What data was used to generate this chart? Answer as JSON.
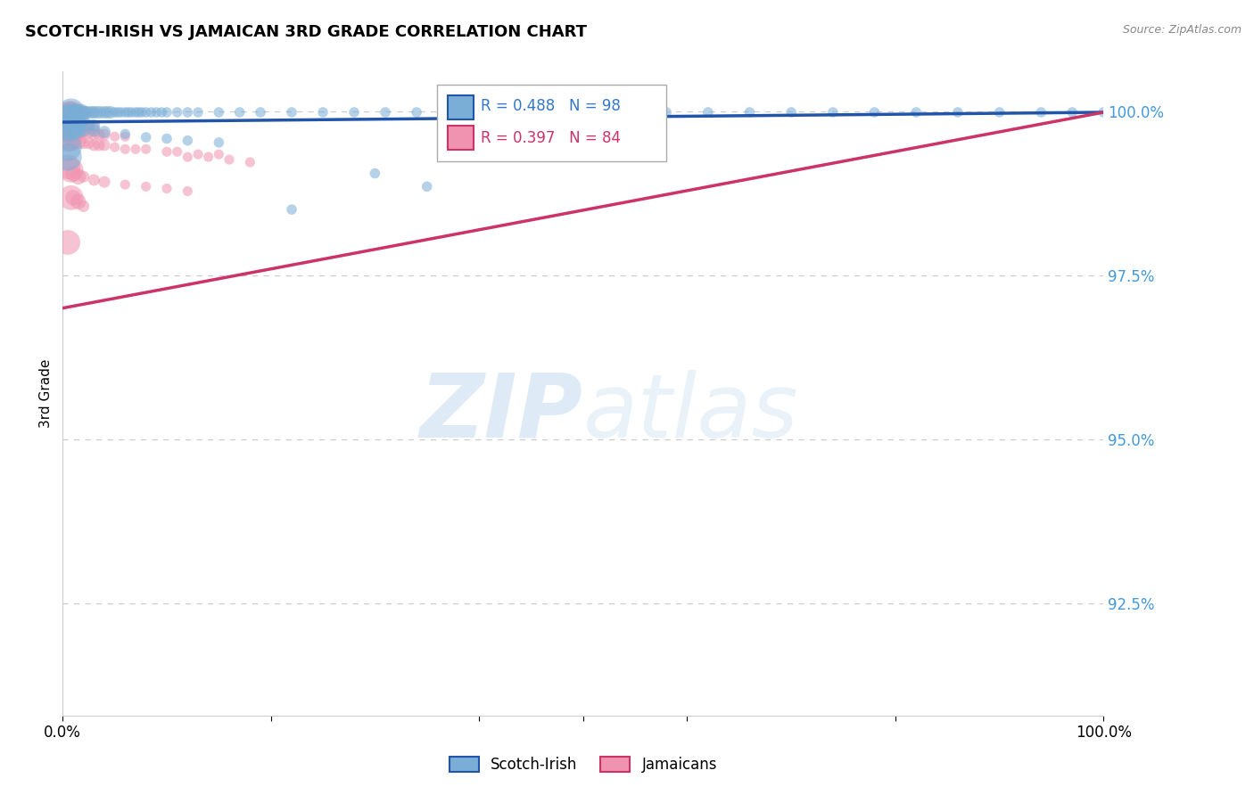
{
  "title": "SCOTCH-IRISH VS JAMAICAN 3RD GRADE CORRELATION CHART",
  "source": "Source: ZipAtlas.com",
  "ylabel": "3rd Grade",
  "y_tick_labels": [
    "100.0%",
    "97.5%",
    "95.0%",
    "92.5%"
  ],
  "y_tick_values": [
    1.0,
    0.975,
    0.95,
    0.925
  ],
  "x_range": [
    0.0,
    1.0
  ],
  "y_range": [
    0.908,
    1.006
  ],
  "legend_blue_label": "Scotch-Irish",
  "legend_pink_label": "Jamaicans",
  "R_blue": 0.488,
  "N_blue": 98,
  "R_pink": 0.397,
  "N_pink": 84,
  "blue_color": "#7aaed6",
  "pink_color": "#f093b0",
  "line_blue": "#2255aa",
  "line_pink": "#cc3366",
  "watermark_zip": "ZIP",
  "watermark_atlas": "atlas",
  "blue_line_start": 0.9983,
  "blue_line_end": 0.9998,
  "pink_line_start": 0.97,
  "pink_line_end": 0.9998,
  "blue_points": [
    [
      0.008,
      0.9998
    ],
    [
      0.01,
      0.9998
    ],
    [
      0.012,
      0.9998
    ],
    [
      0.015,
      0.9998
    ],
    [
      0.018,
      0.9998
    ],
    [
      0.02,
      0.9998
    ],
    [
      0.022,
      0.9998
    ],
    [
      0.025,
      0.9998
    ],
    [
      0.028,
      0.9998
    ],
    [
      0.03,
      0.9998
    ],
    [
      0.033,
      0.9998
    ],
    [
      0.036,
      0.9998
    ],
    [
      0.04,
      0.9998
    ],
    [
      0.043,
      0.9998
    ],
    [
      0.046,
      0.9998
    ],
    [
      0.05,
      0.9998
    ],
    [
      0.053,
      0.9998
    ],
    [
      0.056,
      0.9998
    ],
    [
      0.06,
      0.9998
    ],
    [
      0.063,
      0.9998
    ],
    [
      0.066,
      0.9998
    ],
    [
      0.07,
      0.9998
    ],
    [
      0.073,
      0.9998
    ],
    [
      0.076,
      0.9998
    ],
    [
      0.08,
      0.9998
    ],
    [
      0.085,
      0.9998
    ],
    [
      0.09,
      0.9998
    ],
    [
      0.095,
      0.9998
    ],
    [
      0.1,
      0.9998
    ],
    [
      0.11,
      0.9998
    ],
    [
      0.12,
      0.9998
    ],
    [
      0.13,
      0.9998
    ],
    [
      0.15,
      0.9998
    ],
    [
      0.17,
      0.9998
    ],
    [
      0.19,
      0.9998
    ],
    [
      0.22,
      0.9998
    ],
    [
      0.25,
      0.9998
    ],
    [
      0.28,
      0.9998
    ],
    [
      0.31,
      0.9998
    ],
    [
      0.34,
      0.9998
    ],
    [
      0.37,
      0.9998
    ],
    [
      0.4,
      0.9998
    ],
    [
      0.43,
      0.9998
    ],
    [
      0.46,
      0.9998
    ],
    [
      0.5,
      0.9998
    ],
    [
      0.54,
      0.9998
    ],
    [
      0.58,
      0.9998
    ],
    [
      0.62,
      0.9998
    ],
    [
      0.66,
      0.9998
    ],
    [
      0.7,
      0.9998
    ],
    [
      0.74,
      0.9998
    ],
    [
      0.78,
      0.9998
    ],
    [
      0.82,
      0.9998
    ],
    [
      0.86,
      0.9998
    ],
    [
      0.9,
      0.9998
    ],
    [
      0.94,
      0.9998
    ],
    [
      0.97,
      0.9998
    ],
    [
      1.0,
      0.9998
    ],
    [
      0.005,
      0.999
    ],
    [
      0.008,
      0.999
    ],
    [
      0.01,
      0.9985
    ],
    [
      0.015,
      0.9985
    ],
    [
      0.02,
      0.9985
    ],
    [
      0.005,
      0.998
    ],
    [
      0.01,
      0.998
    ],
    [
      0.015,
      0.998
    ],
    [
      0.025,
      0.9978
    ],
    [
      0.03,
      0.9978
    ],
    [
      0.005,
      0.9975
    ],
    [
      0.008,
      0.9975
    ],
    [
      0.01,
      0.9972
    ],
    [
      0.015,
      0.9972
    ],
    [
      0.02,
      0.997
    ],
    [
      0.03,
      0.997
    ],
    [
      0.04,
      0.9968
    ],
    [
      0.06,
      0.9965
    ],
    [
      0.08,
      0.996
    ],
    [
      0.1,
      0.9958
    ],
    [
      0.12,
      0.9955
    ],
    [
      0.15,
      0.9952
    ],
    [
      0.005,
      0.9945
    ],
    [
      0.005,
      0.993
    ],
    [
      0.3,
      0.9905
    ],
    [
      0.35,
      0.9885
    ],
    [
      0.22,
      0.985
    ]
  ],
  "pink_points": [
    [
      0.005,
      0.9996
    ],
    [
      0.007,
      0.9996
    ],
    [
      0.009,
      0.9996
    ],
    [
      0.011,
      0.9996
    ],
    [
      0.013,
      0.9996
    ],
    [
      0.015,
      0.9996
    ],
    [
      0.017,
      0.9996
    ],
    [
      0.019,
      0.9996
    ],
    [
      0.005,
      0.9992
    ],
    [
      0.007,
      0.9992
    ],
    [
      0.009,
      0.9992
    ],
    [
      0.011,
      0.9992
    ],
    [
      0.013,
      0.9992
    ],
    [
      0.015,
      0.9992
    ],
    [
      0.005,
      0.9988
    ],
    [
      0.007,
      0.9988
    ],
    [
      0.009,
      0.9988
    ],
    [
      0.011,
      0.9988
    ],
    [
      0.013,
      0.9988
    ],
    [
      0.005,
      0.9984
    ],
    [
      0.007,
      0.9984
    ],
    [
      0.009,
      0.9984
    ],
    [
      0.011,
      0.9984
    ],
    [
      0.013,
      0.9984
    ],
    [
      0.015,
      0.9984
    ],
    [
      0.005,
      0.998
    ],
    [
      0.007,
      0.998
    ],
    [
      0.009,
      0.998
    ],
    [
      0.011,
      0.998
    ],
    [
      0.013,
      0.9977
    ],
    [
      0.015,
      0.9977
    ],
    [
      0.018,
      0.9977
    ],
    [
      0.02,
      0.9974
    ],
    [
      0.025,
      0.9974
    ],
    [
      0.03,
      0.9974
    ],
    [
      0.005,
      0.997
    ],
    [
      0.007,
      0.997
    ],
    [
      0.009,
      0.997
    ],
    [
      0.015,
      0.9967
    ],
    [
      0.02,
      0.9967
    ],
    [
      0.025,
      0.9967
    ],
    [
      0.03,
      0.9964
    ],
    [
      0.035,
      0.9964
    ],
    [
      0.04,
      0.9964
    ],
    [
      0.05,
      0.9961
    ],
    [
      0.06,
      0.9961
    ],
    [
      0.005,
      0.9957
    ],
    [
      0.007,
      0.9957
    ],
    [
      0.01,
      0.9954
    ],
    [
      0.015,
      0.9954
    ],
    [
      0.02,
      0.9951
    ],
    [
      0.025,
      0.9951
    ],
    [
      0.03,
      0.9948
    ],
    [
      0.035,
      0.9948
    ],
    [
      0.04,
      0.9948
    ],
    [
      0.05,
      0.9945
    ],
    [
      0.06,
      0.9942
    ],
    [
      0.07,
      0.9942
    ],
    [
      0.08,
      0.9942
    ],
    [
      0.1,
      0.9938
    ],
    [
      0.11,
      0.9938
    ],
    [
      0.13,
      0.9934
    ],
    [
      0.15,
      0.9934
    ],
    [
      0.12,
      0.993
    ],
    [
      0.14,
      0.993
    ],
    [
      0.16,
      0.9926
    ],
    [
      0.18,
      0.9922
    ],
    [
      0.005,
      0.9915
    ],
    [
      0.008,
      0.991
    ],
    [
      0.01,
      0.9905
    ],
    [
      0.015,
      0.99
    ],
    [
      0.02,
      0.99
    ],
    [
      0.03,
      0.9895
    ],
    [
      0.04,
      0.9892
    ],
    [
      0.06,
      0.9888
    ],
    [
      0.08,
      0.9885
    ],
    [
      0.1,
      0.9882
    ],
    [
      0.12,
      0.9878
    ],
    [
      0.008,
      0.9868
    ],
    [
      0.01,
      0.9868
    ],
    [
      0.015,
      0.9862
    ],
    [
      0.02,
      0.9855
    ],
    [
      0.005,
      0.98
    ]
  ],
  "blue_sizes_by_x": {
    "lt_005": 2000,
    "lt_010": 500,
    "lt_020": 180,
    "lt_050": 100,
    "other": 70
  },
  "pink_sizes_by_x": {
    "lt_005": 1800,
    "lt_010": 400,
    "lt_020": 160,
    "lt_050": 90,
    "other": 65
  }
}
